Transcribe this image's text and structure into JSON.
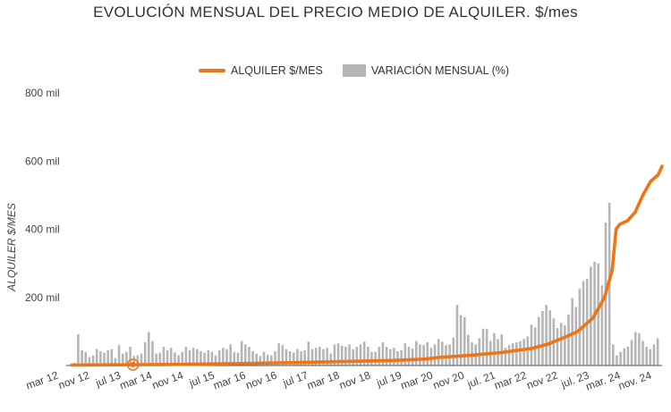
{
  "chart_data": {
    "type": "line+bar",
    "title": "EVOLUCIÓN MENSUAL DEL PRECIO MEDIO DE ALQUILER. $/mes",
    "ylabel": "ALQUILER $/MES",
    "ylim": [
      0,
      800000
    ],
    "y_ticks": [
      "800 mil",
      "600 mil",
      "400 mil",
      "200 mil"
    ],
    "y_tick_values": [
      800000,
      600000,
      400000,
      200000
    ],
    "legend_position": "top-center",
    "x_tick_labels": [
      "mar 12",
      "nov 12",
      "jul 13",
      "mar 14",
      "nov 14",
      "jul 15",
      "mar 16",
      "nov 16",
      "jul 17",
      "mar 18",
      "nov 18",
      "jul 19",
      "mar 20",
      "nov 20",
      "jul. 21",
      "mar 22",
      "nov 22",
      "jul. 23",
      "mar. 24",
      "nov. 24"
    ],
    "x_start": "2012-03",
    "x_end": "2025-01",
    "series": [
      {
        "name": "ALQUILER $/MES",
        "type": "line",
        "color": "#f07314",
        "points": [
          [
            "2012-03",
            1200
          ],
          [
            "2013-03",
            2000
          ],
          [
            "2014-03",
            3000
          ],
          [
            "2015-03",
            4500
          ],
          [
            "2016-03",
            6500
          ],
          [
            "2017-03",
            9000
          ],
          [
            "2018-03",
            12000
          ],
          [
            "2019-03",
            15000
          ],
          [
            "2019-11",
            19000
          ],
          [
            "2020-03",
            24000
          ],
          [
            "2020-11",
            30000
          ],
          [
            "2021-07",
            38000
          ],
          [
            "2022-03",
            50000
          ],
          [
            "2022-07",
            62000
          ],
          [
            "2022-11",
            80000
          ],
          [
            "2023-03",
            100000
          ],
          [
            "2023-07",
            140000
          ],
          [
            "2023-10",
            200000
          ],
          [
            "2023-12",
            280000
          ],
          [
            "2024-01",
            400000
          ],
          [
            "2024-02",
            415000
          ],
          [
            "2024-04",
            425000
          ],
          [
            "2024-06",
            450000
          ],
          [
            "2024-08",
            500000
          ],
          [
            "2024-10",
            540000
          ],
          [
            "2024-12",
            560000
          ],
          [
            "2025-01",
            585000
          ]
        ]
      },
      {
        "name": "VARIACIÓN MENSUAL (%)",
        "type": "bar",
        "color": "#b5b5b5",
        "values": [
          8000,
          92000,
          45000,
          40000,
          25000,
          30000,
          48000,
          42000,
          38000,
          45000,
          48000,
          22000,
          60000,
          35000,
          40000,
          55000,
          28000,
          30000,
          35000,
          68000,
          98000,
          72000,
          35000,
          38000,
          55000,
          45000,
          52000,
          38000,
          30000,
          40000,
          55000,
          45000,
          52000,
          48000,
          42000,
          38000,
          45000,
          40000,
          30000,
          45000,
          52000,
          48000,
          62000,
          40000,
          38000,
          72000,
          62000,
          55000,
          42000,
          35000,
          28000,
          40000,
          32000,
          30000,
          42000,
          65000,
          60000,
          48000,
          42000,
          38000,
          48000,
          42000,
          45000,
          70000,
          48000,
          52000,
          55000,
          48000,
          52000,
          35000,
          62000,
          65000,
          58000,
          55000,
          62000,
          48000,
          55000,
          62000,
          70000,
          55000,
          40000,
          40000,
          55000,
          68000,
          55000,
          48000,
          52000,
          42000,
          45000,
          65000,
          55000,
          50000,
          72000,
          62000,
          60000,
          68000,
          52000,
          62000,
          78000,
          70000,
          60000,
          62000,
          82000,
          178000,
          148000,
          142000,
          90000,
          68000,
          62000,
          80000,
          108000,
          108000,
          72000,
          95000,
          78000,
          92000,
          52000,
          60000,
          65000,
          68000,
          72000,
          78000,
          85000,
          120000,
          112000,
          142000,
          160000,
          178000,
          162000,
          138000,
          110000,
          125000,
          118000,
          150000,
          198000,
          172000,
          225000,
          248000,
          255000,
          290000,
          305000,
          300000,
          235000,
          420000,
          478000,
          62000,
          30000,
          40000,
          50000,
          55000,
          75000,
          98000,
          95000,
          72000,
          55000,
          48000,
          62000,
          80000
        ]
      }
    ],
    "annotation_marker": {
      "x": "2013-07",
      "y": 2500
    }
  }
}
